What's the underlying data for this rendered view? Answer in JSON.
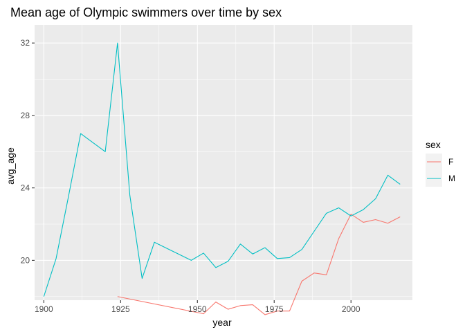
{
  "chart_data": {
    "type": "line",
    "title": "Mean age of Olympic swimmers over time by sex",
    "xlabel": "year",
    "ylabel": "avg_age",
    "xlim": [
      1897,
      2020
    ],
    "ylim": [
      17.8,
      33.0
    ],
    "x_ticks": [
      1900,
      1925,
      1950,
      1975,
      2000
    ],
    "y_ticks": [
      20,
      24,
      28,
      32
    ],
    "x_tick_labels": [
      "1900",
      "1925",
      "1950",
      "1975",
      "2000"
    ],
    "y_tick_labels": [
      "20",
      "24",
      "28",
      "32"
    ],
    "grid": true,
    "legend": {
      "title": "sex",
      "placement": "right"
    },
    "series": [
      {
        "name": "F",
        "color": "#F8766D",
        "x": [
          1924,
          1952,
          1956,
          1960,
          1964,
          1968,
          1972,
          1976,
          1980,
          1984,
          1988,
          1992,
          1996,
          2000,
          2004,
          2008,
          2012,
          2016
        ],
        "y": [
          18.0,
          17.05,
          17.7,
          17.3,
          17.5,
          17.55,
          17.0,
          17.2,
          17.2,
          18.85,
          19.3,
          19.2,
          21.2,
          22.55,
          22.1,
          22.25,
          22.05,
          22.4
        ]
      },
      {
        "name": "M",
        "color": "#00BFC4",
        "x": [
          1900,
          1904,
          1908,
          1912,
          1920,
          1924,
          1928,
          1932,
          1936,
          1948,
          1952,
          1956,
          1960,
          1964,
          1968,
          1972,
          1976,
          1980,
          1984,
          1988,
          1992,
          1996,
          2000,
          2004,
          2008,
          2012,
          2016
        ],
        "y": [
          18.0,
          20.1,
          23.5,
          27.0,
          26.0,
          32.0,
          23.6,
          19.0,
          21.0,
          20.0,
          20.4,
          19.6,
          19.95,
          20.9,
          20.35,
          20.7,
          20.1,
          20.15,
          20.6,
          21.6,
          22.6,
          22.9,
          22.45,
          22.8,
          23.4,
          24.7,
          24.2
        ]
      }
    ]
  }
}
